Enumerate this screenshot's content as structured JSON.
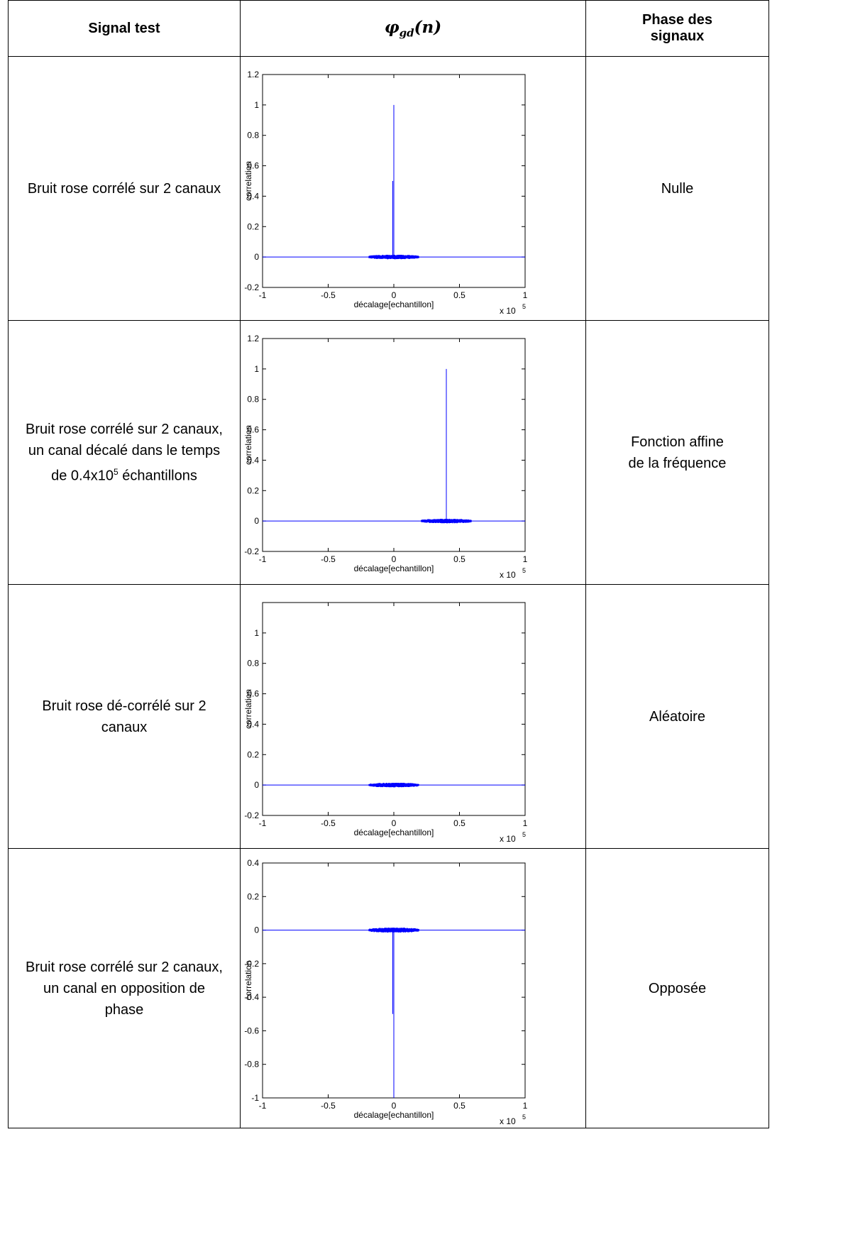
{
  "header": {
    "signal_test": "Signal test",
    "phi_symbol": "φ",
    "phi_sub": "gd",
    "phi_arg": "(n)",
    "phase_line1": "Phase des",
    "phase_line2": "signaux"
  },
  "rows": [
    {
      "signal": [
        "Bruit rose corrélé sur 2 canaux"
      ],
      "phase": [
        "Nulle"
      ],
      "chart_data": {
        "type": "line",
        "xlabel": "décalage[echantillon]",
        "ylabel": "correlation",
        "x_multiplier": "x 10",
        "x_multiplier_exp": "5",
        "xlim": [
          -1,
          1
        ],
        "ylim": [
          -0.2,
          1.2
        ],
        "xticks": [
          "-1",
          "-0.5",
          "0",
          "0.5",
          "1"
        ],
        "yticks": [
          "-0.2",
          "0",
          "0.2",
          "0.4",
          "0.6",
          "0.8",
          "1",
          "1.2"
        ],
        "baseline": 0,
        "noise_center": 0,
        "noise_halfwidth": 0.19,
        "noise_amplitude": 0.015,
        "peak_x": 0,
        "peak_y": 1.0,
        "secondary_line_y": 0.5,
        "color": "#0000ff"
      }
    },
    {
      "signal": [
        "Bruit rose corrélé sur 2 canaux,",
        "un canal décalé dans le temps",
        "de 0.4x10",
        "5",
        " échantillons"
      ],
      "phase": [
        "Fonction affine",
        "de la fréquence"
      ],
      "chart_data": {
        "type": "line",
        "xlabel": "décalage[echantillon]",
        "ylabel": "correlation",
        "x_multiplier": "x 10",
        "x_multiplier_exp": "5",
        "xlim": [
          -1,
          1
        ],
        "ylim": [
          -0.2,
          1.2
        ],
        "xticks": [
          "-1",
          "-0.5",
          "0",
          "0.5",
          "1"
        ],
        "yticks": [
          "-0.2",
          "0",
          "0.2",
          "0.4",
          "0.6",
          "0.8",
          "1",
          "1.2"
        ],
        "baseline": 0,
        "noise_center": 0.4,
        "noise_halfwidth": 0.19,
        "noise_amplitude": 0.015,
        "peak_x": 0.4,
        "peak_y": 1.0,
        "secondary_line_y": null,
        "color": "#0000ff"
      }
    },
    {
      "signal": [
        "Bruit rose dé-corrélé sur 2",
        "canaux"
      ],
      "phase": [
        "Aléatoire"
      ],
      "chart_data": {
        "type": "line",
        "xlabel": "décalage[echantillon]",
        "ylabel": "correlation",
        "x_multiplier": "x 10",
        "x_multiplier_exp": "5",
        "xlim": [
          -1,
          1
        ],
        "ylim": [
          -0.2,
          1.2
        ],
        "xticks": [
          "-1",
          "-0.5",
          "0",
          "0.5",
          "1"
        ],
        "yticks": [
          "-0.2",
          "0",
          "0.2",
          "0.4",
          "0.6",
          "0.8",
          "1"
        ],
        "baseline": 0,
        "noise_center": 0,
        "noise_halfwidth": 0.19,
        "noise_amplitude": 0.015,
        "peak_x": null,
        "peak_y": null,
        "secondary_line_y": null,
        "color": "#0000ff"
      }
    },
    {
      "signal": [
        "Bruit rose corrélé sur 2 canaux,",
        "un canal en opposition de",
        "phase"
      ],
      "phase": [
        "Opposée"
      ],
      "chart_data": {
        "type": "line",
        "xlabel": "décalage[echantillon]",
        "ylabel": "correlation",
        "x_multiplier": "x 10",
        "x_multiplier_exp": "5",
        "xlim": [
          -1,
          1
        ],
        "ylim": [
          -1,
          0.4
        ],
        "xticks": [
          "-1",
          "-0.5",
          "0",
          "0.5",
          "1"
        ],
        "yticks": [
          "-1",
          "-0.8",
          "-0.6",
          "-0.4",
          "-0.2",
          "0",
          "0.2",
          "0.4"
        ],
        "baseline": 0,
        "noise_center": 0,
        "noise_halfwidth": 0.19,
        "noise_amplitude": 0.015,
        "peak_x": 0,
        "peak_y": -1.0,
        "secondary_line_y": -0.5,
        "color": "#0000ff"
      }
    }
  ]
}
